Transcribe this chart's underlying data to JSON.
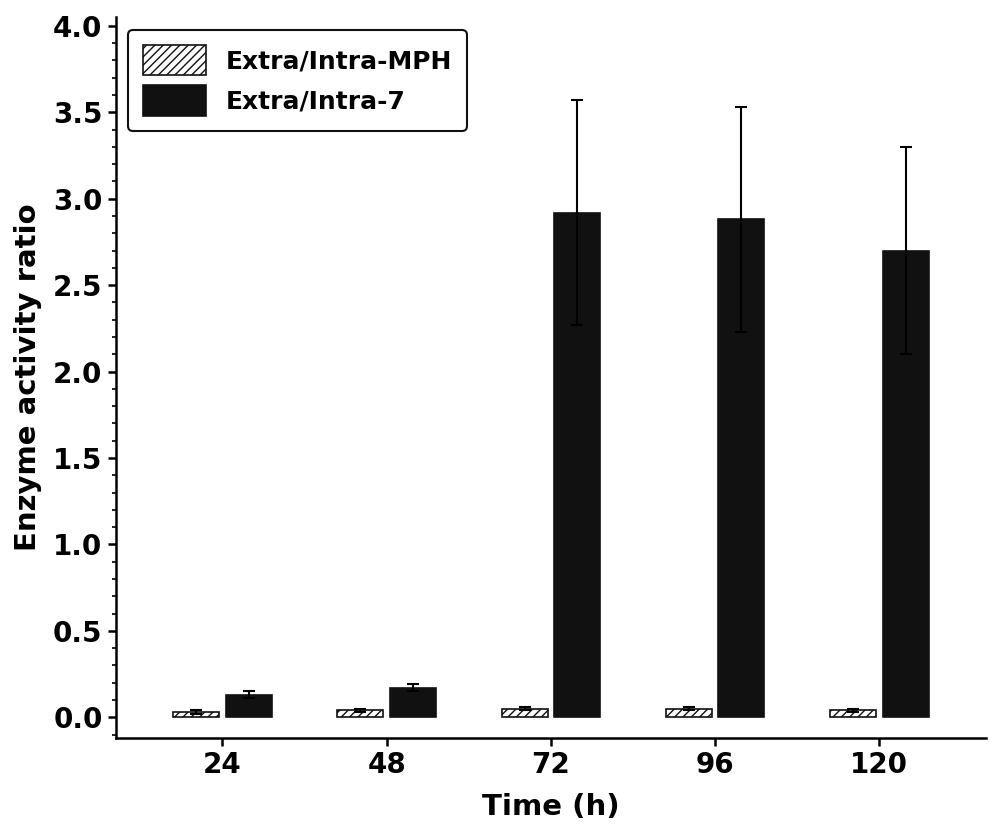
{
  "time_points": [
    24,
    48,
    72,
    96,
    120
  ],
  "mph_values": [
    0.03,
    0.04,
    0.05,
    0.05,
    0.04
  ],
  "mph_errors": [
    0.01,
    0.01,
    0.01,
    0.01,
    0.01
  ],
  "intra7_values": [
    0.13,
    0.17,
    2.92,
    2.88,
    2.7
  ],
  "intra7_errors": [
    0.02,
    0.02,
    0.65,
    0.65,
    0.6
  ],
  "ylabel": "Enzyme activity ratio",
  "xlabel": "Time (h)",
  "legend_label_mph": "Extra/Intra-MPH",
  "legend_label_7": "Extra/Intra-7",
  "ylim": [
    -0.12,
    4.05
  ],
  "yticks": [
    0.0,
    0.5,
    1.0,
    1.5,
    2.0,
    2.5,
    3.0,
    3.5,
    4.0
  ],
  "bar_width": 0.28,
  "mph_color": "white",
  "mph_edgecolor": "#111111",
  "intra7_color": "#111111",
  "intra7_edgecolor": "#111111",
  "hatch": "////",
  "legend_frameon": true,
  "legend_edgecolor": "#111111",
  "fig_width": 10.0,
  "fig_height": 8.35
}
